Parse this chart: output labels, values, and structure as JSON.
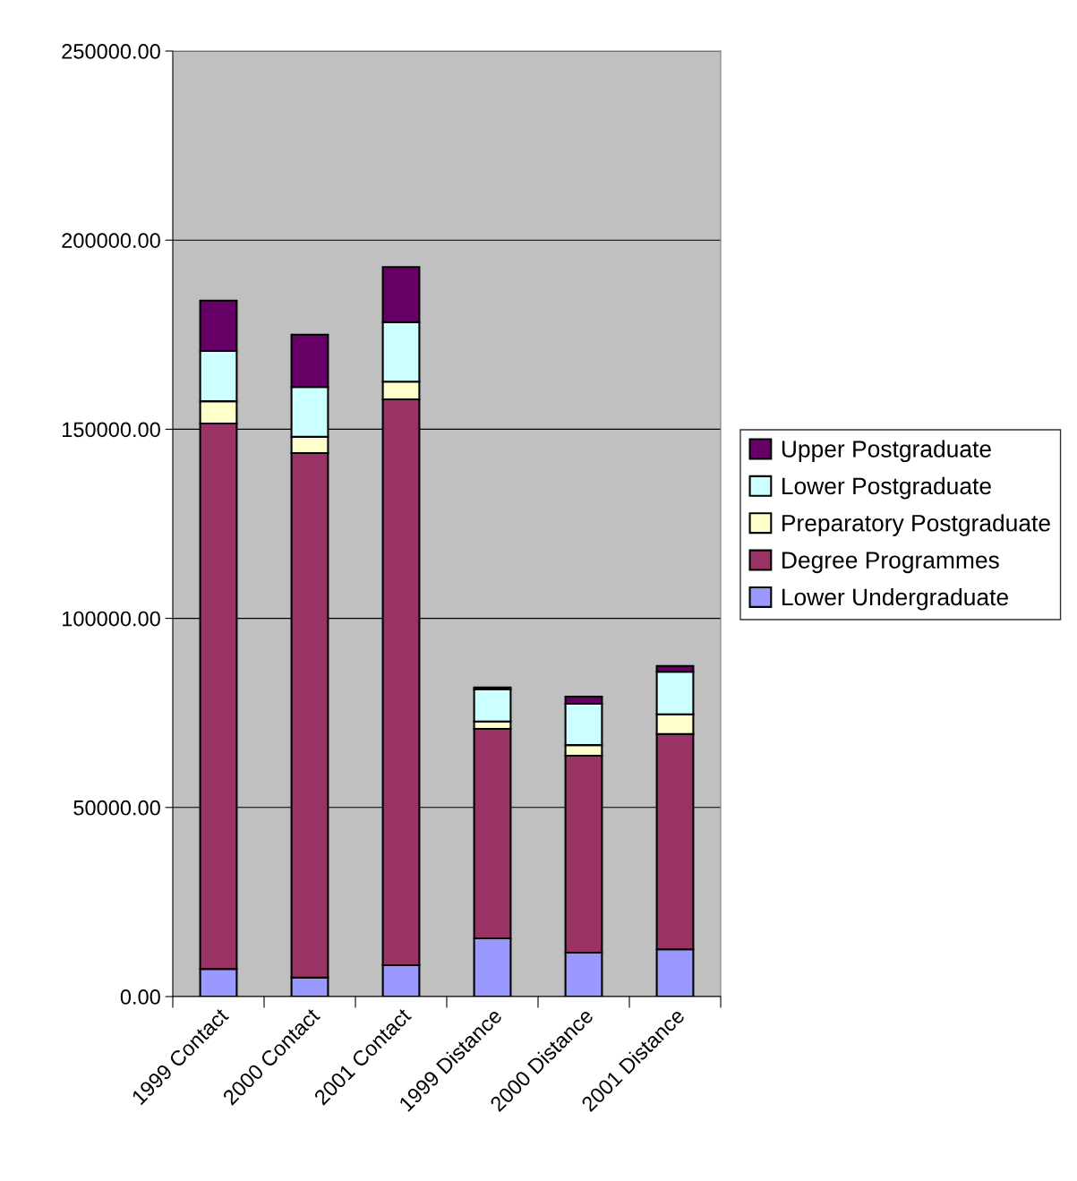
{
  "chart_data": {
    "type": "bar",
    "stacked": true,
    "categories": [
      "1999 Contact",
      "2000 Contact",
      "2001 Contact",
      "1999 Distance",
      "2000 Distance",
      "2001 Distance"
    ],
    "series": [
      {
        "name": "Lower Undergraduate",
        "color": "#9999ff",
        "values": [
          7300,
          5000,
          8300,
          15400,
          11600,
          12500
        ]
      },
      {
        "name": "Degree Programmes",
        "color": "#993366",
        "values": [
          144200,
          138700,
          149600,
          55400,
          52100,
          56900
        ]
      },
      {
        "name": "Preparatory Postgraduate",
        "color": "#ffffcc",
        "values": [
          5900,
          4300,
          4700,
          1900,
          2800,
          5200
        ]
      },
      {
        "name": "Lower Postgraduate",
        "color": "#ccffff",
        "values": [
          13300,
          13200,
          15700,
          8500,
          10900,
          11300
        ]
      },
      {
        "name": "Upper Postgraduate",
        "color": "#660066",
        "values": [
          13300,
          13800,
          14600,
          500,
          1900,
          1500
        ]
      }
    ],
    "ylim": [
      0,
      250000
    ],
    "yticks": [
      {
        "value": 0,
        "label": "0.00"
      },
      {
        "value": 50000,
        "label": "50000.00"
      },
      {
        "value": 100000,
        "label": "100000.00"
      },
      {
        "value": 150000,
        "label": "150000.00"
      },
      {
        "value": 200000,
        "label": "200000.00"
      },
      {
        "value": 250000,
        "label": "250000.00"
      }
    ],
    "grid": "y",
    "legend": "right"
  }
}
